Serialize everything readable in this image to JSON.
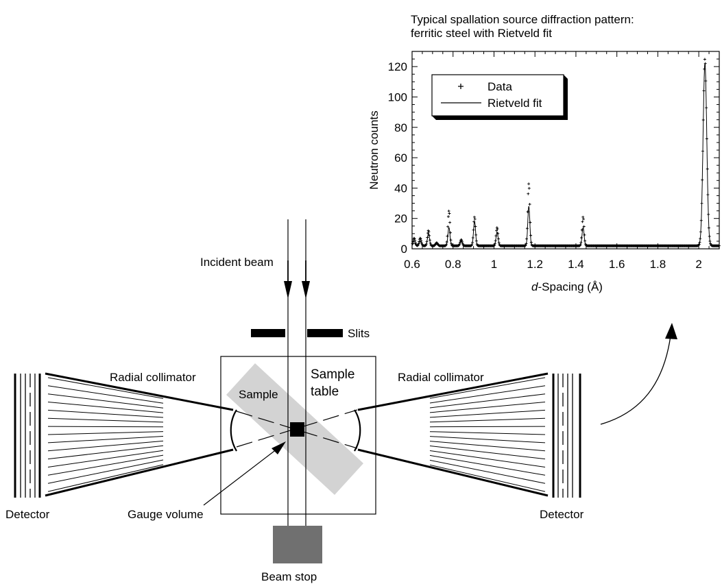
{
  "chart_data": {
    "type": "scatter",
    "title": "Typical spallation source diffraction pattern:",
    "subtitle": "ferritic steel with Rietveld fit",
    "xlabel_prefix": "d",
    "xlabel_rest": "-Spacing (Å)",
    "ylabel": "Neutron counts",
    "xlim": [
      0.6,
      2.1
    ],
    "ylim": [
      0,
      130
    ],
    "x_ticks": [
      "0.6",
      "0.8",
      "1",
      "1.2",
      "1.4",
      "1.6",
      "1.8",
      "2"
    ],
    "y_ticks": [
      "0",
      "20",
      "40",
      "60",
      "80",
      "100",
      "120"
    ],
    "legend": {
      "placement": "top-left",
      "entries": [
        "Data",
        "Rietveld fit"
      ]
    },
    "baseline": 2,
    "peaks": [
      {
        "d": 0.61,
        "data": 7,
        "fit": 4
      },
      {
        "d": 0.64,
        "data": 7,
        "fit": 5
      },
      {
        "d": 0.68,
        "data": 12,
        "fit": 10
      },
      {
        "d": 0.72,
        "data": 4,
        "fit": 3
      },
      {
        "d": 0.78,
        "data": 25,
        "fit": 14
      },
      {
        "d": 0.84,
        "data": 6,
        "fit": 5
      },
      {
        "d": 0.905,
        "data": 21,
        "fit": 18
      },
      {
        "d": 1.015,
        "data": 14,
        "fit": 11
      },
      {
        "d": 1.17,
        "data": 43,
        "fit": 28
      },
      {
        "d": 1.435,
        "data": 21,
        "fit": 14
      },
      {
        "d": 2.03,
        "data": 125,
        "fit": 122
      }
    ]
  },
  "diagram": {
    "incident_beam": "Incident beam",
    "slits": "Slits",
    "sample": "Sample",
    "sample_table_line1": "Sample",
    "sample_table_line2": "table",
    "radial_collimator_left": "Radial collimator",
    "radial_collimator_right": "Radial collimator",
    "detector_left": "Detector",
    "detector_right": "Detector",
    "gauge_volume": "Gauge volume",
    "beam_stop": "Beam stop"
  }
}
